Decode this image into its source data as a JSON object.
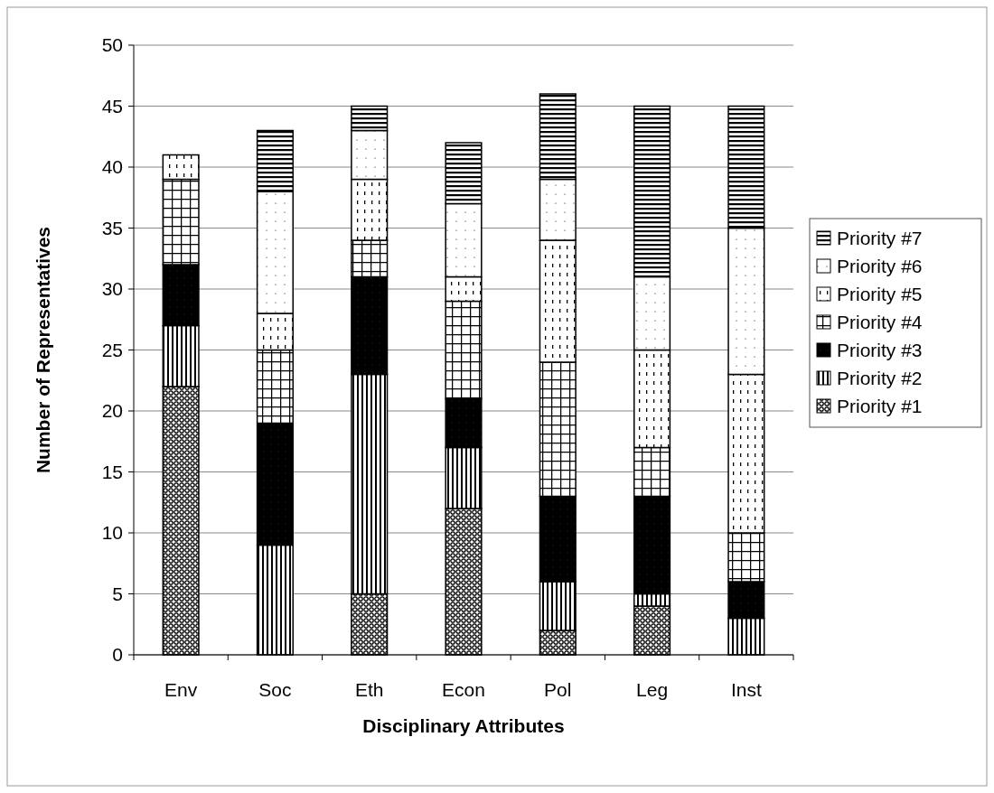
{
  "chart_data": {
    "type": "bar",
    "stacked": true,
    "xlabel": "Disciplinary Attributes",
    "ylabel": "Number of Representatives",
    "categories": [
      "Env",
      "Soc",
      "Eth",
      "Econ",
      "Pol",
      "Leg",
      "Inst"
    ],
    "series": [
      {
        "name": "Priority #1",
        "color": "#000000",
        "values": [
          22,
          0,
          5,
          12,
          2,
          4,
          0
        ]
      },
      {
        "name": "Priority #2",
        "color": "#000000",
        "values": [
          5,
          9,
          18,
          5,
          4,
          1,
          3
        ]
      },
      {
        "name": "Priority #3",
        "color": "#000000",
        "values": [
          5,
          10,
          8,
          4,
          7,
          8,
          3
        ]
      },
      {
        "name": "Priority #4",
        "color": "#000000",
        "values": [
          7,
          6,
          3,
          8,
          11,
          4,
          4
        ]
      },
      {
        "name": "Priority #5",
        "color": "#000000",
        "values": [
          2,
          3,
          5,
          2,
          10,
          8,
          13
        ]
      },
      {
        "name": "Priority #6",
        "color": "#000000",
        "values": [
          0,
          10,
          4,
          6,
          5,
          6,
          12
        ]
      },
      {
        "name": "Priority #7",
        "color": "#000000",
        "values": [
          0,
          5,
          2,
          5,
          7,
          14,
          10
        ]
      }
    ],
    "ylim": [
      0,
      50
    ],
    "yticks": [
      0,
      5,
      10,
      15,
      20,
      25,
      30,
      35,
      40,
      45,
      50
    ],
    "grid": "y",
    "legend": "right"
  }
}
